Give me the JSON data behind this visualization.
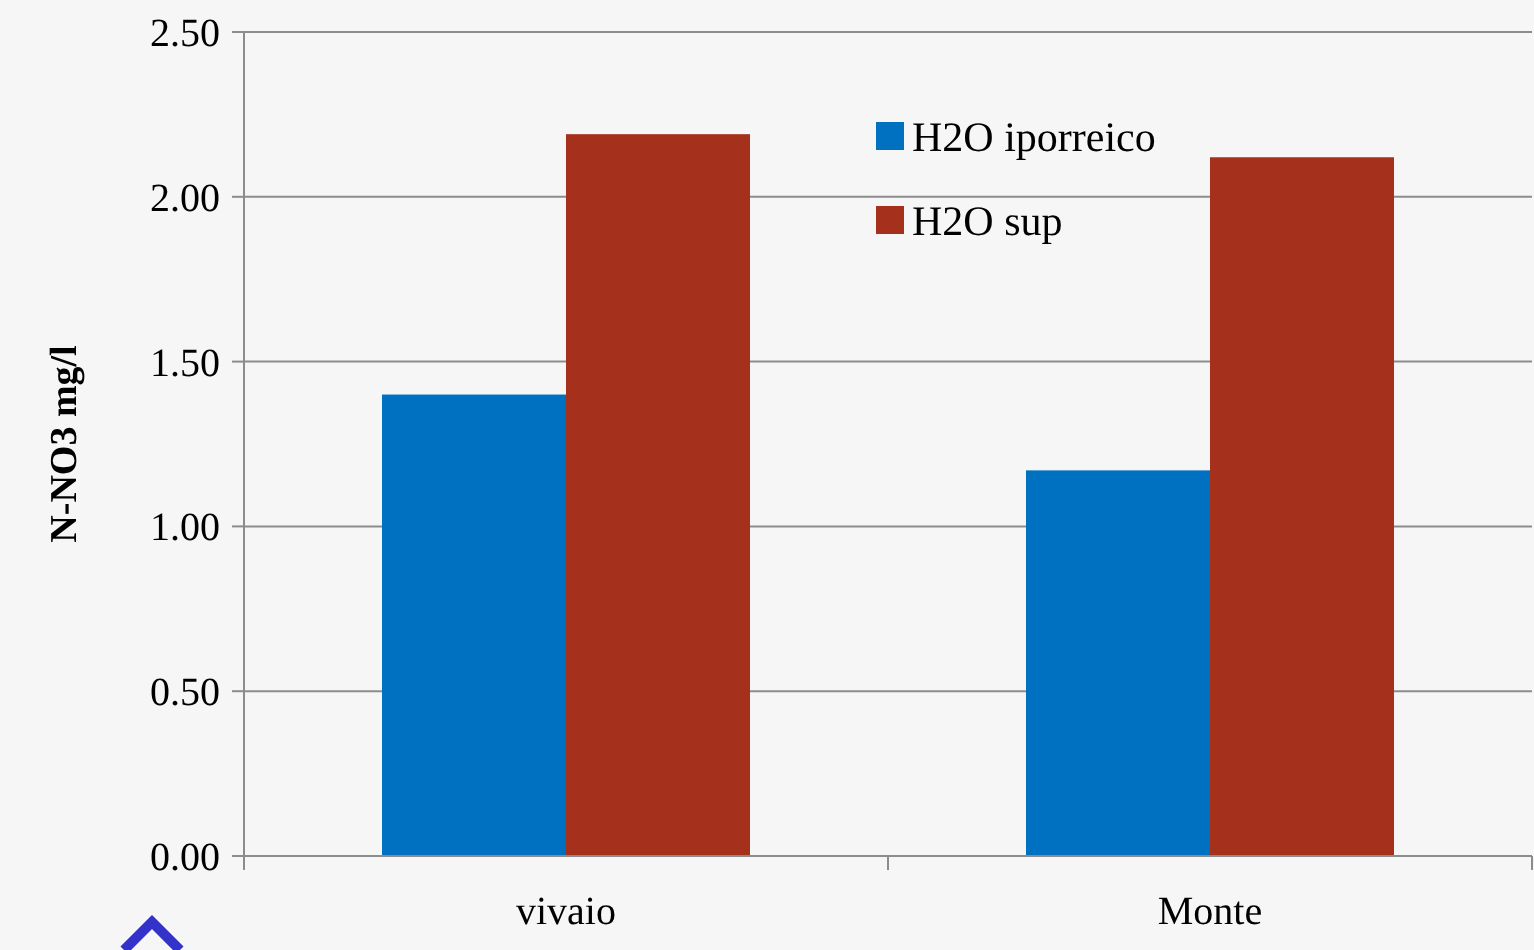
{
  "chart_data": {
    "type": "bar",
    "ylabel": "N-NO3 mg/l",
    "categories": [
      "vivaio",
      "Monte"
    ],
    "series": [
      {
        "name": "H2O iporreico",
        "color": "#0070c0",
        "values": [
          1.4,
          1.17
        ]
      },
      {
        "name": "H2O sup",
        "color": "#a5301b",
        "values": [
          2.19,
          2.12
        ]
      }
    ],
    "ylim": [
      0,
      2.5
    ],
    "yticks": [
      {
        "value": 0,
        "label": "0.00"
      },
      {
        "value": 0.5,
        "label": "0.50"
      },
      {
        "value": 1,
        "label": "1.00"
      },
      {
        "value": 1.5,
        "label": "1.50"
      },
      {
        "value": 2,
        "label": "2.00"
      },
      {
        "value": 2.5,
        "label": "2.50"
      }
    ],
    "grid": "y",
    "legend": "top right"
  }
}
